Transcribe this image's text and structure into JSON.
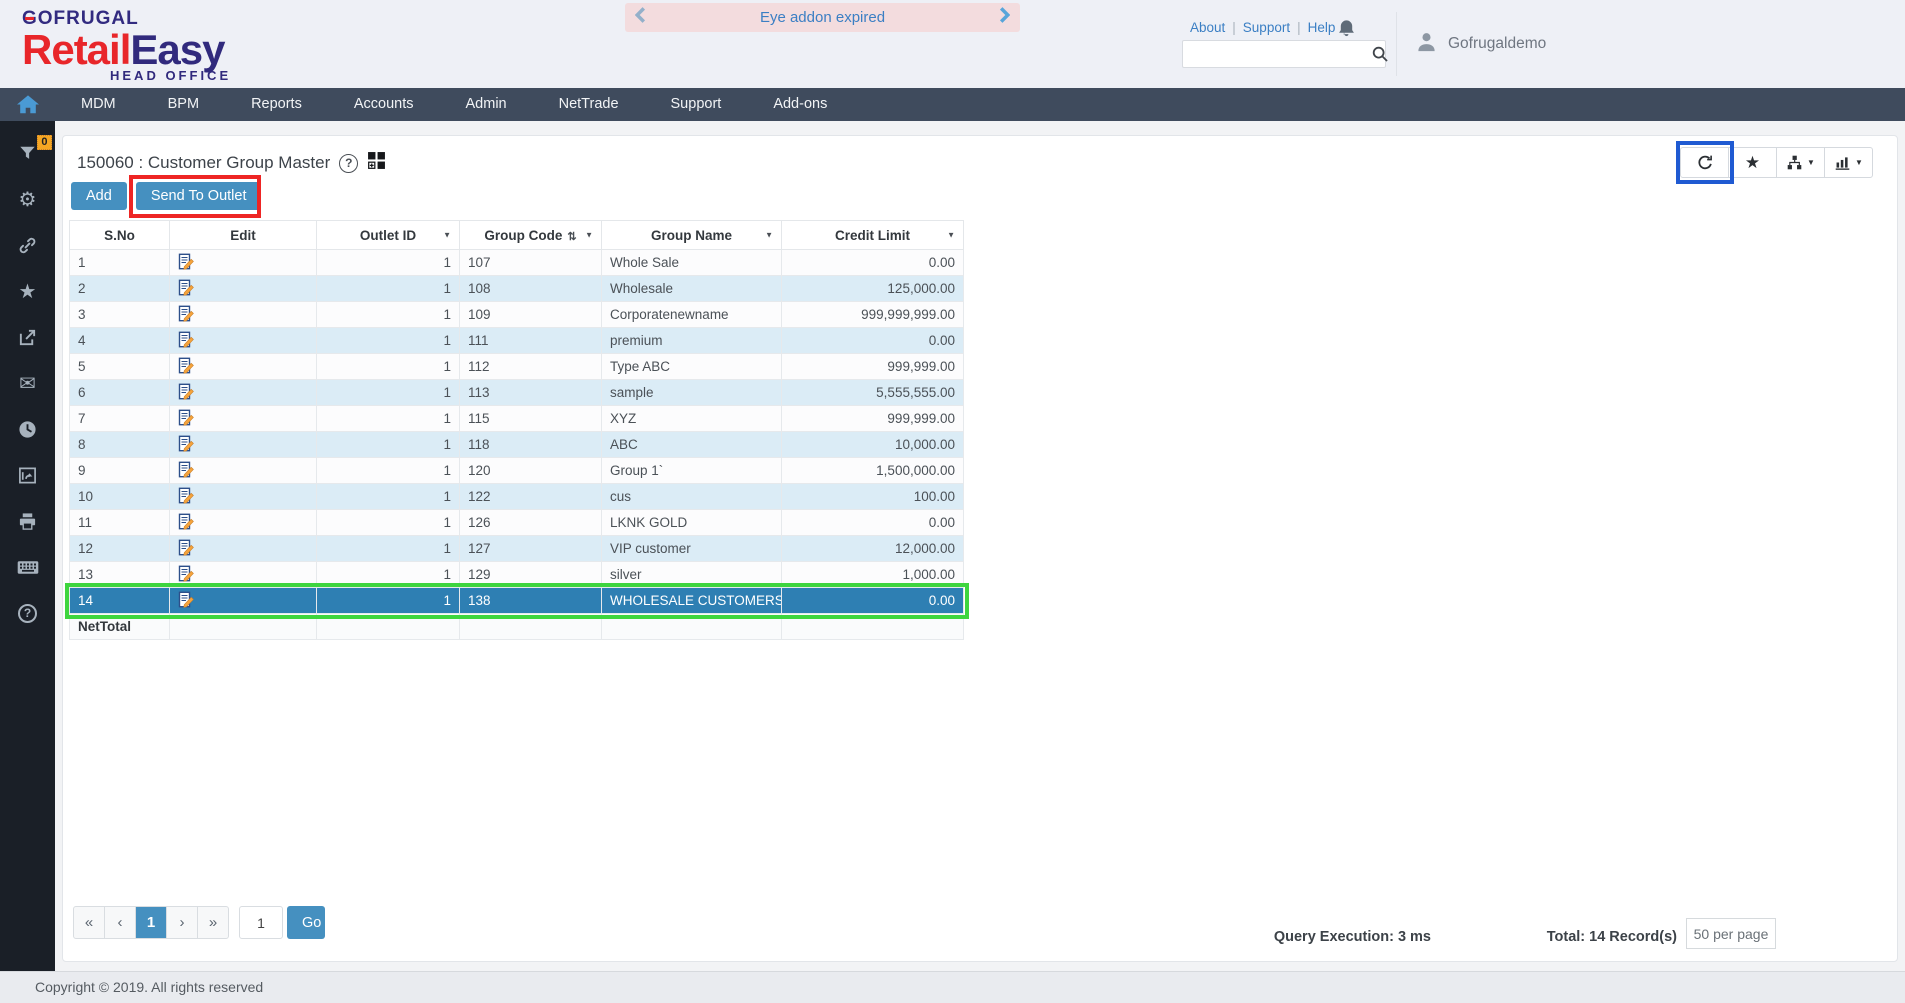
{
  "brand": {
    "company": "GOFRUGAL",
    "product_primary": "Retail",
    "product_secondary": "Easy",
    "tagline": "HEAD OFFICE"
  },
  "banner": {
    "message": "Eye addon expired"
  },
  "topbar": {
    "links": [
      {
        "label": "About"
      },
      {
        "label": "Support"
      },
      {
        "label": "Help"
      }
    ],
    "username": "Gofrugaldemo",
    "search_placeholder": ""
  },
  "nav": {
    "items": [
      "MDM",
      "BPM",
      "Reports",
      "Accounts",
      "Admin",
      "NetTrade",
      "Support",
      "Add-ons"
    ]
  },
  "sidebar": {
    "filter_badge": "0",
    "icons": [
      "filter",
      "settings",
      "link",
      "favorites",
      "share",
      "mail",
      "history",
      "sync-window",
      "print",
      "keyboard",
      "help"
    ]
  },
  "page": {
    "title": "150060 : Customer Group Master",
    "add_button": "Add",
    "send_to_outlet_button": "Send To Outlet"
  },
  "table": {
    "headers": [
      "S.No",
      "Edit",
      "Outlet ID",
      "Group Code",
      "Group Name",
      "Credit Limit"
    ],
    "rows": [
      {
        "sno": "1",
        "outlet_id": "1",
        "group_code": "107",
        "group_name": "Whole Sale",
        "credit_limit": "0.00"
      },
      {
        "sno": "2",
        "outlet_id": "1",
        "group_code": "108",
        "group_name": "Wholesale",
        "credit_limit": "125,000.00"
      },
      {
        "sno": "3",
        "outlet_id": "1",
        "group_code": "109",
        "group_name": "Corporatenewname",
        "credit_limit": "999,999,999.00"
      },
      {
        "sno": "4",
        "outlet_id": "1",
        "group_code": "111",
        "group_name": "premium",
        "credit_limit": "0.00"
      },
      {
        "sno": "5",
        "outlet_id": "1",
        "group_code": "112",
        "group_name": "Type ABC",
        "credit_limit": "999,999.00"
      },
      {
        "sno": "6",
        "outlet_id": "1",
        "group_code": "113",
        "group_name": "sample",
        "credit_limit": "5,555,555.00"
      },
      {
        "sno": "7",
        "outlet_id": "1",
        "group_code": "115",
        "group_name": "XYZ",
        "credit_limit": "999,999.00"
      },
      {
        "sno": "8",
        "outlet_id": "1",
        "group_code": "118",
        "group_name": "ABC",
        "credit_limit": "10,000.00"
      },
      {
        "sno": "9",
        "outlet_id": "1",
        "group_code": "120",
        "group_name": "Group 1`",
        "credit_limit": "1,500,000.00"
      },
      {
        "sno": "10",
        "outlet_id": "1",
        "group_code": "122",
        "group_name": "cus",
        "credit_limit": "100.00"
      },
      {
        "sno": "11",
        "outlet_id": "1",
        "group_code": "126",
        "group_name": "LKNK GOLD",
        "credit_limit": "0.00"
      },
      {
        "sno": "12",
        "outlet_id": "1",
        "group_code": "127",
        "group_name": "VIP customer",
        "credit_limit": "12,000.00"
      },
      {
        "sno": "13",
        "outlet_id": "1",
        "group_code": "129",
        "group_name": "silver",
        "credit_limit": "1,000.00"
      },
      {
        "sno": "14",
        "outlet_id": "1",
        "group_code": "138",
        "group_name": "WHOLESALE CUSTOMERS",
        "credit_limit": "0.00",
        "selected": true
      }
    ],
    "net_total_label": "NetTotal"
  },
  "pagination": {
    "first": "«",
    "prev": "‹",
    "current_page": "1",
    "next": "›",
    "last": "»",
    "page_input": "1",
    "go_label": "Go"
  },
  "status": {
    "query_execution": "Query Execution: 3 ms",
    "total_records": "Total: 14 Record(s)",
    "per_page": "50 per page"
  },
  "footer": {
    "copyright": "Copyright © 2019. All rights reserved"
  },
  "colors": {
    "accent_blue": "#4590c0",
    "selected_row": "#2e7fb3",
    "stripe_row": "#dbecf6",
    "annotation_red": "#ee2524",
    "annotation_green": "#3ed53e",
    "annotation_blue": "#1f5ad2",
    "banner_bg": "#f3dcde",
    "nav_bg": "#3f4b5d",
    "sidebar_bg": "#1a1f27",
    "header_bg": "#eef0f6"
  }
}
